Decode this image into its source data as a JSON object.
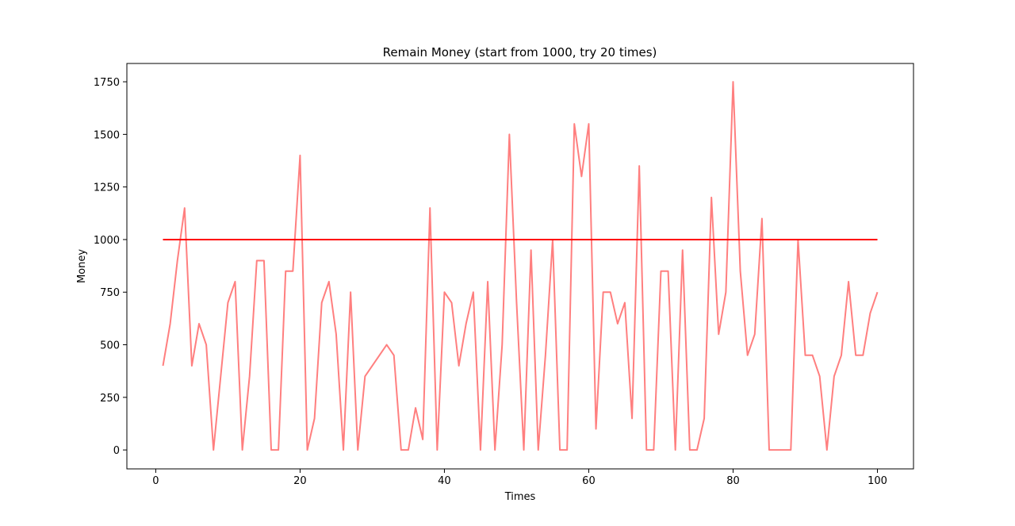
{
  "chart_data": {
    "type": "line",
    "title": "Remain Money (start from 1000, try 20 times)",
    "xlabel": "Times",
    "ylabel": "Money",
    "xlim": [
      -4,
      105
    ],
    "ylim": [
      -90,
      1837
    ],
    "xticks": [
      0,
      20,
      40,
      60,
      80,
      100
    ],
    "yticks": [
      0,
      250,
      500,
      750,
      1000,
      1250,
      1500,
      1750
    ],
    "grid": false,
    "series": [
      {
        "color": "#ff7f7f",
        "x": [
          1,
          2,
          3,
          4,
          5,
          6,
          7,
          8,
          9,
          10,
          11,
          12,
          13,
          14,
          15,
          16,
          17,
          18,
          19,
          20,
          21,
          22,
          23,
          24,
          25,
          26,
          27,
          28,
          29,
          30,
          31,
          32,
          33,
          34,
          35,
          36,
          37,
          38,
          39,
          40,
          41,
          42,
          43,
          44,
          45,
          46,
          47,
          48,
          49,
          50,
          51,
          52,
          53,
          54,
          55,
          56,
          57,
          58,
          59,
          60,
          61,
          62,
          63,
          64,
          65,
          66,
          67,
          68,
          69,
          70,
          71,
          72,
          73,
          74,
          75,
          76,
          77,
          78,
          79,
          80,
          81,
          82,
          83,
          84,
          85,
          86,
          87,
          88,
          89,
          90,
          91,
          92,
          93,
          94,
          95,
          96,
          97,
          98,
          99,
          100
        ],
        "y": [
          400,
          600,
          900,
          1150,
          400,
          600,
          500,
          0,
          350,
          700,
          800,
          0,
          350,
          900,
          900,
          0,
          0,
          850,
          850,
          1400,
          0,
          150,
          700,
          800,
          550,
          0,
          750,
          0,
          350,
          400,
          450,
          500,
          450,
          0,
          0,
          200,
          50,
          1150,
          0,
          750,
          700,
          400,
          600,
          750,
          0,
          800,
          0,
          500,
          1500,
          700,
          0,
          950,
          0,
          450,
          1000,
          0,
          0,
          1550,
          1300,
          1550,
          100,
          750,
          750,
          600,
          700,
          150,
          1350,
          0,
          0,
          850,
          850,
          0,
          950,
          0,
          0,
          150,
          1200,
          550,
          750,
          1750,
          850,
          450,
          550,
          1100,
          0,
          0,
          0,
          0,
          1000,
          450,
          450,
          350,
          0,
          350,
          450,
          800,
          450,
          450,
          650,
          750
        ]
      },
      {
        "color": "#ff0000",
        "x": [
          1,
          100
        ],
        "y": [
          1000,
          1000
        ]
      }
    ]
  }
}
